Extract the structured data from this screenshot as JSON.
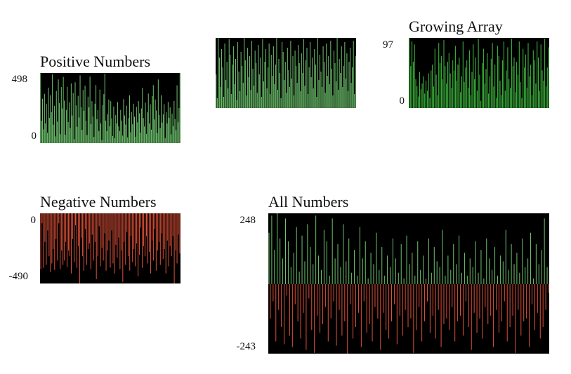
{
  "chart_data": [
    {
      "id": "positive",
      "type": "bar",
      "title": "Positive Numbers",
      "ylim": [
        0,
        498
      ],
      "tick_labels": [
        "498",
        "0"
      ],
      "positive_color": "#6fc46f",
      "values": [
        497,
        160,
        315,
        98,
        350,
        140,
        280,
        74,
        394,
        180,
        340,
        220,
        488,
        132,
        265,
        48,
        371,
        152,
        452,
        284,
        64,
        398,
        246,
        470,
        302,
        60,
        236,
        400,
        150,
        290,
        108,
        424,
        196,
        356,
        28,
        432,
        268,
        116,
        336,
        182,
        481,
        256,
        94,
        378,
        230,
        408,
        160,
        58,
        330,
        254,
        472,
        134,
        298,
        190,
        44,
        280,
        412,
        170,
        236,
        86,
        380,
        140,
        22,
        270,
        348,
        494,
        160,
        86,
        206,
        310,
        120,
        298,
        176,
        50,
        260,
        36,
        200,
        140,
        292,
        120,
        86,
        236,
        160,
        54,
        312,
        196,
        132,
        266,
        42,
        178,
        340,
        78,
        222,
        134,
        280,
        188,
        46,
        258,
        148,
        298,
        212,
        76,
        246,
        392,
        178,
        118,
        288,
        66,
        218,
        352,
        140,
        276,
        96,
        334,
        412,
        168,
        310,
        232,
        72,
        452,
        200,
        108,
        340,
        146,
        204,
        276,
        36,
        220,
        140,
        292,
        180,
        254,
        62,
        210,
        120,
        300,
        172,
        92,
        410,
        148,
        250,
        498
      ]
    },
    {
      "id": "untitled",
      "type": "bar",
      "title": "",
      "ylim": [
        0,
        100
      ],
      "tick_labels": [],
      "positive_color": "#6fc46f",
      "values": [
        48,
        14,
        100,
        72,
        30,
        84,
        58,
        16,
        92,
        40,
        66,
        28,
        98,
        76,
        20,
        62,
        88,
        34,
        70,
        12,
        94,
        52,
        24,
        80,
        60,
        36,
        100,
        68,
        18,
        86,
        44,
        74,
        26,
        96,
        56,
        32,
        82,
        64,
        22,
        90,
        48,
        72,
        16,
        98,
        38,
        66,
        84,
        28,
        58,
        92,
        20,
        76,
        46,
        88,
        34,
        62,
        100,
        26,
        70,
        50,
        14,
        94,
        80,
        40,
        66,
        22,
        86,
        54,
        30,
        96,
        42,
        74,
        18,
        82,
        60,
        36,
        90,
        64,
        24,
        78,
        50,
        98,
        32,
        68,
        86,
        20,
        58,
        94,
        44,
        72,
        28,
        84,
        62,
        16,
        100,
        40,
        76,
        52,
        30,
        88,
        66,
        22,
        92,
        46,
        74,
        34,
        96,
        56,
        18,
        82,
        64,
        38,
        100,
        26,
        70,
        50,
        88,
        30,
        60,
        94,
        42,
        78,
        24,
        66,
        86,
        36,
        58,
        96,
        20,
        74
      ]
    },
    {
      "id": "growing",
      "type": "bar",
      "title": "Growing Array",
      "ylim": [
        0,
        97
      ],
      "tick_labels": [
        "97",
        "0"
      ],
      "positive_color": "#42c242",
      "values": [
        97,
        58,
        92,
        64,
        88,
        40,
        30,
        16,
        50,
        26,
        34,
        44,
        20,
        38,
        24,
        48,
        14,
        52,
        60,
        30,
        82,
        46,
        18,
        90,
        62,
        72,
        40,
        94,
        58,
        34,
        64,
        76,
        48,
        28,
        66,
        52,
        86,
        38,
        60,
        70,
        22,
        44,
        92,
        36,
        56,
        66,
        28,
        80,
        18,
        50,
        88,
        40,
        70,
        24,
        96,
        46,
        10,
        62,
        82,
        34,
        54,
        76,
        20,
        44,
        68,
        90,
        30,
        60,
        14,
        86,
        72,
        38,
        18,
        66,
        92,
        24,
        52,
        84,
        40,
        28,
        96,
        58,
        70,
        22,
        64,
        46,
        92,
        36,
        14,
        82,
        56,
        74,
        28,
        90,
        44,
        60,
        18,
        80,
        66,
        34,
        92,
        70,
        24,
        88,
        52,
        38,
        96,
        30,
        56,
        84
      ]
    },
    {
      "id": "negative",
      "type": "bar",
      "title": "Negative Numbers",
      "ylim": [
        -490,
        0
      ],
      "tick_labels": [
        "0",
        "-490"
      ],
      "positive_color": "#e0523a",
      "negative_color": "#e0523a",
      "values": [
        -390,
        -70,
        -380,
        -200,
        -360,
        -120,
        -300,
        -410,
        -350,
        -250,
        -396,
        -180,
        -330,
        -70,
        -390,
        -260,
        -360,
        -330,
        -200,
        -376,
        -260,
        -300,
        -420,
        -180,
        -340,
        -84,
        -380,
        -230,
        -490,
        -170,
        -300,
        -400,
        -110,
        -360,
        -250,
        -210,
        -390,
        -150,
        -330,
        -200,
        -460,
        -300,
        -90,
        -370,
        -240,
        -330,
        -140,
        -400,
        -260,
        -190,
        -380,
        -120,
        -350,
        -420,
        -220,
        -310,
        -170,
        -390,
        -260,
        -480,
        -200,
        -360,
        -130,
        -300,
        -400,
        -160,
        -340,
        -250,
        -370,
        -210,
        -440,
        -290,
        -100,
        -380,
        -230,
        -300,
        -160,
        -350,
        -270,
        -420,
        -190,
        -330,
        -110,
        -400,
        -260,
        -200,
        -360,
        -140,
        -320,
        -250,
        -420,
        -190,
        -370,
        -230,
        -300,
        -160,
        -490,
        -260,
        -350,
        -150,
        -280
      ]
    },
    {
      "id": "all",
      "type": "bar",
      "title": "All Numbers",
      "ylim": [
        -243,
        248
      ],
      "tick_labels": [
        "248",
        "-243"
      ],
      "positive_color": "#6fc46f",
      "negative_color": "#e0523a",
      "values": [
        180,
        -120,
        240,
        -60,
        120,
        -200,
        248,
        -90,
        160,
        -150,
        90,
        -210,
        230,
        -40,
        150,
        -180,
        60,
        -220,
        110,
        -70,
        200,
        -130,
        44,
        -190,
        170,
        -100,
        80,
        -230,
        210,
        -50,
        130,
        -160,
        70,
        -240,
        240,
        -110,
        100,
        -170,
        50,
        -140,
        190,
        -80,
        150,
        -200,
        30,
        -120,
        230,
        -60,
        90,
        -215,
        140,
        -90,
        60,
        -180,
        210,
        -130,
        80,
        -243,
        160,
        -70,
        40,
        -190,
        120,
        -150,
        30,
        -100,
        200,
        -220,
        90,
        -60,
        150,
        -170,
        20,
        -140,
        110,
        -200,
        70,
        -80,
        180,
        -120,
        50,
        -230,
        130,
        -100,
        30,
        -160,
        100,
        -190,
        60,
        -130,
        160,
        -70,
        90,
        -210,
        40,
        -110,
        140,
        -180,
        20,
        -90,
        170,
        -150,
        70,
        -120,
        110,
        -240,
        30,
        -160,
        150,
        -80,
        50,
        -200,
        100,
        -130,
        20,
        -60,
        160,
        -170,
        40,
        -110,
        130,
        -190,
        80,
        -90,
        60,
        -220,
        190,
        -140,
        30,
        -120,
        100,
        -160,
        50,
        -80,
        140,
        -200,
        70,
        -130,
        170,
        -110,
        40,
        -180,
        110,
        -60,
        30,
        -150,
        90,
        -230,
        60,
        -100,
        150,
        -170,
        40,
        -120,
        120,
        -190,
        20,
        -80,
        160,
        -140,
        90,
        -110,
        50,
        -220,
        130,
        -90,
        30,
        -170,
        100,
        -130,
        80,
        -60,
        190,
        -200,
        50,
        -150,
        140,
        -110,
        70,
        -240,
        110,
        -90,
        40,
        -180,
        160,
        -130,
        60,
        -120,
        90,
        -220,
        180,
        -70,
        20,
        -160,
        140,
        -100,
        70,
        -190,
        120,
        -150,
        230,
        -90,
        60,
        -30
      ]
    }
  ]
}
